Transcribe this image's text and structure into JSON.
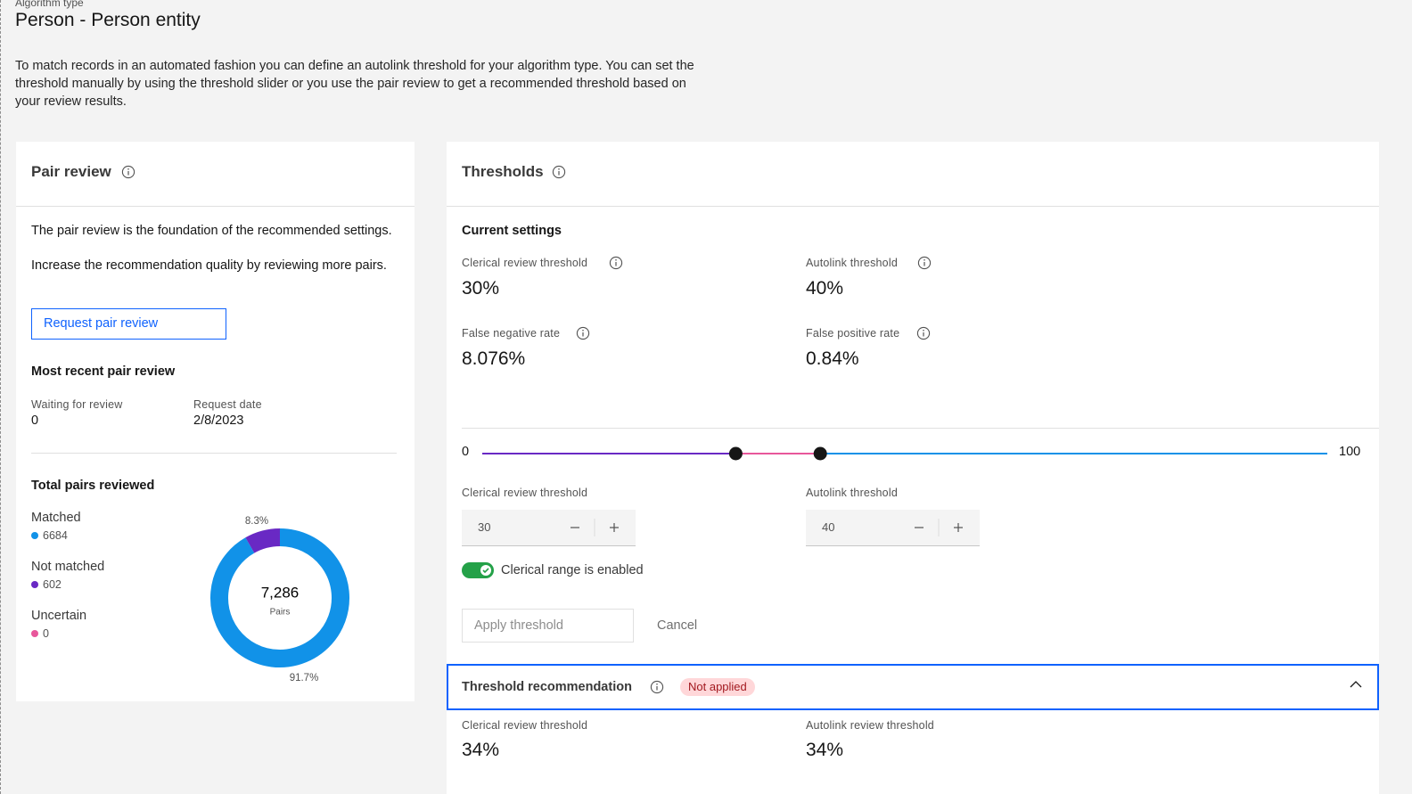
{
  "header": {
    "label": "Algorithm type",
    "title": "Person - Person entity",
    "description": "To match records in an automated fashion you can define an autolink threshold for your algorithm type. You can set the threshold manually by using the threshold slider or you use the pair review to get a recommended threshold based on your review results."
  },
  "pair_review": {
    "title": "Pair review",
    "description": [
      "The pair review is the foundation of the recommended settings.",
      "Increase the recommendation quality by reviewing more pairs."
    ],
    "button": "Request pair review",
    "recent": {
      "title": "Most recent pair review",
      "waiting_label": "Waiting for review",
      "waiting_value": "0",
      "date_label": "Request date",
      "date_value": "2/8/2023"
    },
    "chart": {
      "type": "donut",
      "title": "Total pairs reviewed",
      "categories": [
        "Matched",
        "Not matched",
        "Uncertain"
      ],
      "values": [
        6684,
        602,
        0
      ],
      "colors": [
        "#1192e8",
        "#6929c4",
        "#e8579b"
      ],
      "percent_labels": [
        "91.7%",
        "8.3%"
      ],
      "total": "7,286",
      "total_label": "Pairs"
    }
  },
  "thresholds": {
    "title": "Thresholds",
    "current_title": "Current settings",
    "clerical_label": "Clerical review threshold",
    "clerical_value": "30%",
    "autolink_label": "Autolink threshold",
    "autolink_value": "40%",
    "fnr_label": "False negative rate",
    "fnr_value": "8.076%",
    "fpr_label": "False positive rate",
    "fpr_value": "0.84%",
    "slider": {
      "min": 0,
      "max": 100,
      "clerical": 30,
      "autolink": 40
    },
    "toggle": "Clerical range is enabled",
    "apply": "Apply threshold",
    "cancel": "Cancel"
  },
  "recommendation": {
    "title": "Threshold recommendation",
    "tag": "Not applied",
    "clerical_label": "Clerical review threshold",
    "clerical_value": "34%",
    "autolink_label": "Autolink review threshold",
    "autolink_value": "34%"
  }
}
